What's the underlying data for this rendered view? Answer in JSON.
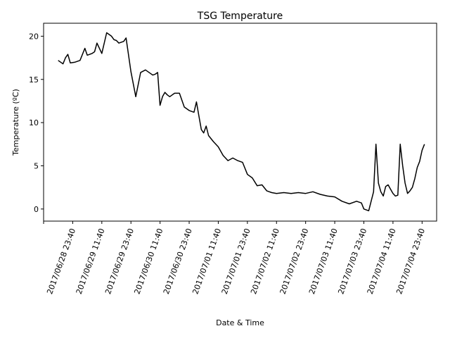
{
  "chart_data": {
    "type": "line",
    "title": "TSG Temperature",
    "xlabel": "Date & Time",
    "ylabel": "Temperature (ºC)",
    "x_tick_labels": [
      "2017/06/28 23:40",
      "2017/06/29 11:40",
      "2017/06/29 23:40",
      "2017/06/30 11:40",
      "2017/06/30 23:40",
      "2017/07/01 11:40",
      "2017/07/01 23:40",
      "2017/07/02 11:40",
      "2017/07/02 23:40",
      "2017/07/03 11:40",
      "2017/07/03 23:40",
      "2017/07/04 11:40",
      "2017/07/04 23:40"
    ],
    "y_ticks": [
      0,
      5,
      10,
      15,
      20
    ],
    "ylim": [
      -1.4,
      21.5
    ],
    "xlim": [
      "2017/06/28 11:40",
      "2017/07/05 05:40"
    ],
    "grid": false,
    "series": [
      {
        "color": "#000000",
        "x": [
          "2017/06/28 17:40",
          "2017/06/28 19:40",
          "2017/06/28 20:40",
          "2017/06/28 21:40",
          "2017/06/28 22:40",
          "2017/06/29 00:40",
          "2017/06/29 02:40",
          "2017/06/29 04:40",
          "2017/06/29 05:40",
          "2017/06/29 07:40",
          "2017/06/29 08:40",
          "2017/06/29 09:40",
          "2017/06/29 11:40",
          "2017/06/29 13:40",
          "2017/06/29 15:40",
          "2017/06/29 16:40",
          "2017/06/29 17:40",
          "2017/06/29 18:40",
          "2017/06/29 20:40",
          "2017/06/29 21:40",
          "2017/06/29 23:40",
          "2017/06/30 01:40",
          "2017/06/30 03:40",
          "2017/06/30 05:40",
          "2017/06/30 07:40",
          "2017/06/30 08:40",
          "2017/06/30 09:40",
          "2017/06/30 10:40",
          "2017/06/30 11:40",
          "2017/06/30 12:40",
          "2017/06/30 13:40",
          "2017/06/30 14:40",
          "2017/06/30 15:40",
          "2017/06/30 17:40",
          "2017/06/30 19:40",
          "2017/06/30 21:40",
          "2017/06/30 23:40",
          "2017/07/01 01:40",
          "2017/07/01 02:40",
          "2017/07/01 03:40",
          "2017/07/01 04:40",
          "2017/07/01 05:40",
          "2017/07/01 06:40",
          "2017/07/01 07:40",
          "2017/07/01 09:40",
          "2017/07/01 11:40",
          "2017/07/01 13:40",
          "2017/07/01 15:40",
          "2017/07/01 17:40",
          "2017/07/01 19:40",
          "2017/07/01 21:40",
          "2017/07/01 23:40",
          "2017/07/02 01:40",
          "2017/07/02 03:40",
          "2017/07/02 05:40",
          "2017/07/02 07:40",
          "2017/07/02 09:40",
          "2017/07/02 11:40",
          "2017/07/02 14:40",
          "2017/07/02 17:40",
          "2017/07/02 20:40",
          "2017/07/02 23:40",
          "2017/07/03 02:40",
          "2017/07/03 05:40",
          "2017/07/03 08:40",
          "2017/07/03 11:40",
          "2017/07/03 14:40",
          "2017/07/03 17:40",
          "2017/07/03 20:40",
          "2017/07/03 22:40",
          "2017/07/03 23:40",
          "2017/07/04 01:40",
          "2017/07/04 03:40",
          "2017/07/04 04:40",
          "2017/07/04 05:40",
          "2017/07/04 06:40",
          "2017/07/04 07:40",
          "2017/07/04 08:40",
          "2017/07/04 09:40",
          "2017/07/04 10:40",
          "2017/07/04 11:40",
          "2017/07/04 12:40",
          "2017/07/04 13:40",
          "2017/07/04 14:40",
          "2017/07/04 15:40",
          "2017/07/04 16:40",
          "2017/07/04 17:40",
          "2017/07/04 18:40",
          "2017/07/04 19:40",
          "2017/07/04 20:40",
          "2017/07/04 21:40",
          "2017/07/04 22:40",
          "2017/07/04 23:40",
          "2017/07/05 00:40"
        ],
        "y": [
          17.2,
          16.8,
          17.5,
          17.9,
          16.9,
          17.0,
          17.2,
          18.6,
          17.8,
          18.0,
          18.2,
          19.2,
          18.0,
          20.4,
          20.0,
          19.6,
          19.5,
          19.2,
          19.4,
          19.8,
          15.9,
          13.0,
          15.8,
          16.1,
          15.7,
          15.5,
          15.6,
          15.8,
          12.0,
          13.0,
          13.5,
          13.2,
          13.0,
          13.4,
          13.4,
          11.8,
          11.4,
          11.2,
          12.4,
          10.8,
          9.2,
          8.8,
          9.6,
          8.5,
          7.8,
          7.2,
          6.2,
          5.6,
          5.9,
          5.6,
          5.4,
          4.0,
          3.6,
          2.7,
          2.8,
          2.1,
          1.9,
          1.8,
          1.9,
          1.8,
          1.9,
          1.8,
          2.0,
          1.7,
          1.5,
          1.4,
          0.9,
          0.6,
          0.9,
          0.7,
          0.0,
          -0.2,
          2.0,
          7.5,
          3.0,
          2.0,
          1.5,
          2.6,
          2.8,
          2.3,
          1.8,
          1.5,
          1.6,
          7.5,
          5.0,
          3.0,
          1.8,
          2.1,
          2.5,
          3.5,
          4.8,
          5.5,
          6.8,
          7.5
        ]
      }
    ]
  }
}
